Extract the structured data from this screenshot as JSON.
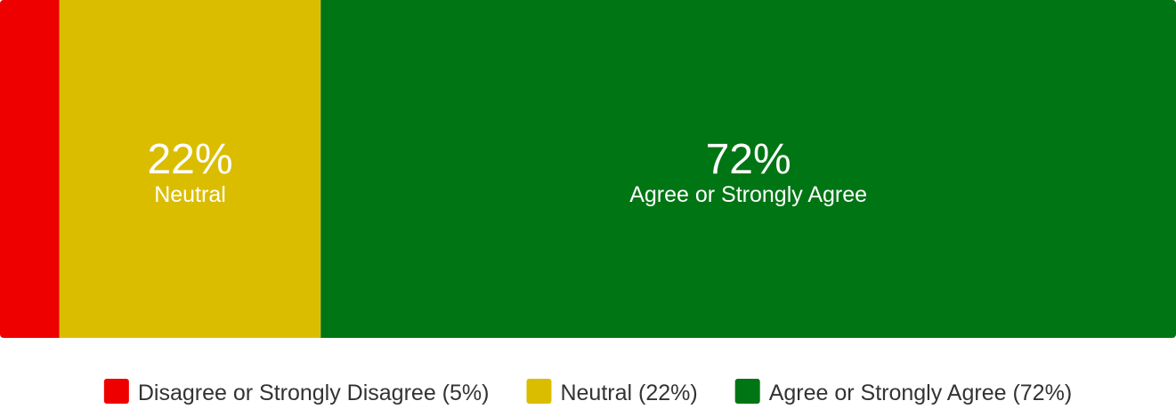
{
  "chart_data": {
    "type": "bar",
    "orientation": "horizontal",
    "stacked": true,
    "title": "",
    "xlabel": "",
    "ylabel": "",
    "xlim": [
      0,
      99
    ],
    "grid": false,
    "legend_position": "bottom",
    "series": [
      {
        "name": "Disagree or Strongly Disagree",
        "value": 5,
        "legend_label": "Disagree or Strongly Disagree (5%)",
        "color": "#ee0000",
        "label_visible": false
      },
      {
        "name": "Neutral",
        "value": 22,
        "value_label": "22%",
        "legend_label": "Neutral (22%)",
        "color": "#dbbd00",
        "label_visible": true
      },
      {
        "name": "Agree or Strongly Agree",
        "value": 72,
        "value_label": "72%",
        "legend_label": "Agree or Strongly Agree (72%)",
        "color": "#007514",
        "label_visible": true
      }
    ]
  }
}
